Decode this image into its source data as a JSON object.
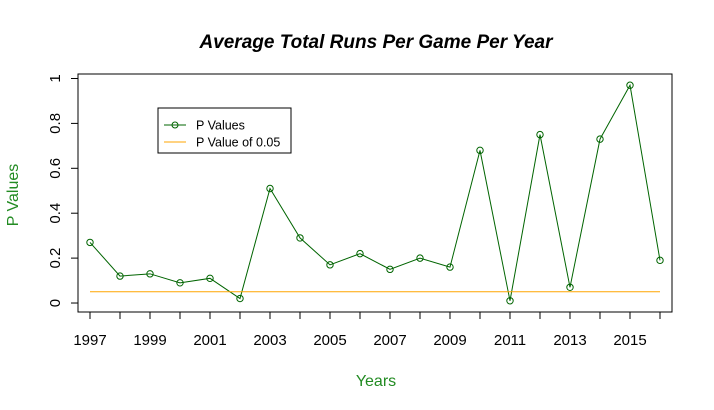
{
  "chart_data": {
    "type": "line",
    "title": "Average Total Runs Per Game Per Year",
    "xlabel": "Years",
    "ylabel": "P Values",
    "xlim": [
      1996.6,
      2016.4
    ],
    "ylim": [
      -0.04,
      1.02
    ],
    "x_ticks": [
      1997,
      1999,
      2001,
      2003,
      2005,
      2007,
      2009,
      2011,
      2013,
      2015
    ],
    "x_tick_labels": [
      "1997",
      "1999",
      "2001",
      "2003",
      "2005",
      "2007",
      "2009",
      "2011",
      "2013",
      "2015"
    ],
    "y_ticks": [
      0,
      0.2,
      0.4,
      0.6,
      0.8,
      1
    ],
    "y_tick_labels": [
      "0",
      "0.2",
      "0.4",
      "0.6",
      "0.8",
      "1"
    ],
    "legend_position": "top-left",
    "series": [
      {
        "name": "P Values",
        "color": "#006400",
        "marker": "open-circle",
        "x": [
          1997,
          1998,
          1999,
          2000,
          2001,
          2002,
          2003,
          2004,
          2005,
          2006,
          2007,
          2008,
          2009,
          2010,
          2011,
          2012,
          2013,
          2014,
          2015,
          2016
        ],
        "values": [
          0.27,
          0.12,
          0.13,
          0.09,
          0.11,
          0.02,
          0.51,
          0.29,
          0.17,
          0.22,
          0.15,
          0.2,
          0.16,
          0.68,
          0.01,
          0.75,
          0.07,
          0.73,
          0.97,
          0.19
        ]
      },
      {
        "name": "P Value of 0.05",
        "color": "#FFA500",
        "marker": "none",
        "x": [
          1997,
          2016
        ],
        "values": [
          0.05,
          0.05
        ]
      }
    ]
  }
}
